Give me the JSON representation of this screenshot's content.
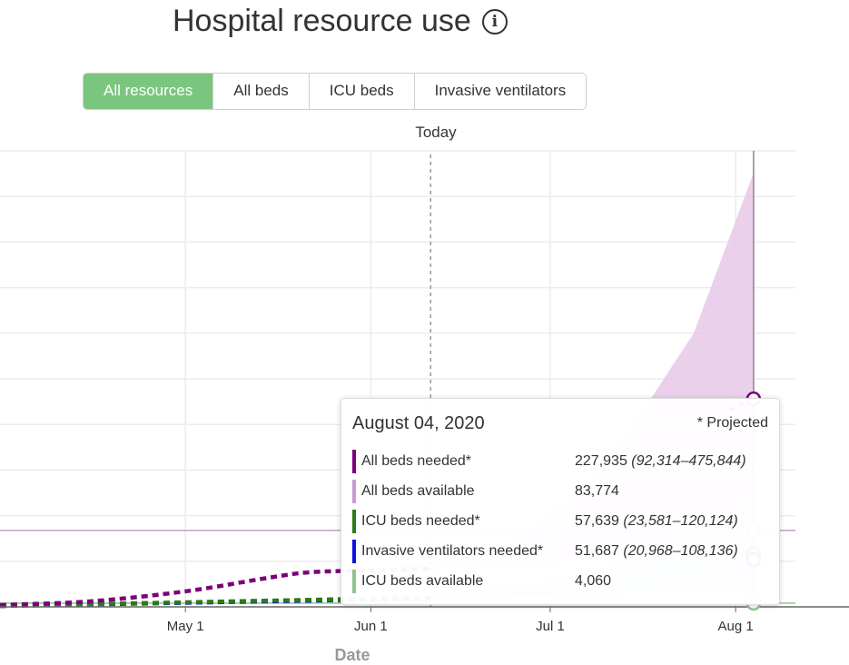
{
  "header": {
    "title": "Hospital resource use",
    "info_icon": "info-icon"
  },
  "tabs": [
    {
      "label": "All resources",
      "active": true
    },
    {
      "label": "All beds",
      "active": false
    },
    {
      "label": "ICU beds",
      "active": false
    },
    {
      "label": "Invasive ventilators",
      "active": false
    }
  ],
  "today_label": "Today",
  "chart_data": {
    "type": "line",
    "xlabel": "Date",
    "x_ticks": [
      "May 1",
      "Jun 1",
      "Jul 1",
      "Aug 1"
    ],
    "x_range": [
      "2020-03-31",
      "2020-08-11"
    ],
    "today": "2020-06-11",
    "hover_date": "2020-08-04",
    "y_range": [
      0,
      500000
    ],
    "grid": true,
    "colors": {
      "all_beds_needed": "#7b007b",
      "all_beds_available": "#c89ad4",
      "icu_beds_needed": "#2a7a1a",
      "ventilators_needed": "#1010e0",
      "icu_beds_available": "#8fc48f",
      "band_all_beds": "#e6c8e6",
      "band_icu": "#cfd2e8"
    },
    "series": [
      {
        "name": "All beds needed",
        "key": "all_beds_needed",
        "x": [
          "2020-03-31",
          "2020-04-15",
          "2020-05-01",
          "2020-05-15",
          "2020-05-22",
          "2020-06-01",
          "2020-06-11",
          "2020-06-25",
          "2020-07-10",
          "2020-07-25",
          "2020-08-04"
        ],
        "values": [
          2000,
          6000,
          17000,
          32000,
          38000,
          40000,
          42000,
          58000,
          90000,
          150000,
          227935
        ],
        "lower": [
          2000,
          6000,
          17000,
          32000,
          38000,
          40000,
          41000,
          45000,
          55000,
          72000,
          92314
        ],
        "upper": [
          2000,
          6000,
          17000,
          32000,
          38000,
          40000,
          43000,
          70000,
          150000,
          300000,
          475844
        ]
      },
      {
        "name": "All beds available",
        "key": "all_beds_available",
        "constant": 83774
      },
      {
        "name": "ICU beds needed",
        "key": "icu_beds_needed",
        "x": [
          "2020-03-31",
          "2020-05-01",
          "2020-06-01",
          "2020-06-11",
          "2020-07-01",
          "2020-07-20",
          "2020-08-04"
        ],
        "values": [
          1000,
          5000,
          9000,
          10000,
          18000,
          32000,
          57639
        ],
        "lower": [
          1000,
          5000,
          9000,
          9500,
          12000,
          17000,
          23581
        ],
        "upper": [
          1000,
          5000,
          9000,
          10500,
          28000,
          60000,
          120124
        ]
      },
      {
        "name": "Invasive ventilators needed",
        "key": "ventilators_needed",
        "x": [
          "2020-03-31",
          "2020-05-01",
          "2020-06-01",
          "2020-06-11",
          "2020-07-01",
          "2020-07-20",
          "2020-08-04"
        ],
        "values": [
          900,
          4500,
          8000,
          9000,
          16000,
          28000,
          51687
        ],
        "lower": [
          900,
          4500,
          8000,
          8500,
          11000,
          15000,
          20968
        ],
        "upper": [
          900,
          4500,
          8000,
          9500,
          25000,
          52000,
          108136
        ]
      },
      {
        "name": "ICU beds available",
        "key": "icu_beds_available",
        "constant": 4060
      }
    ]
  },
  "tooltip": {
    "date": "August 04, 2020",
    "projected_note": "* Projected",
    "rows": [
      {
        "label": "All beds needed*",
        "value": "227,935",
        "range": "(92,314–475,844)",
        "color": "#7b007b"
      },
      {
        "label": "All beds available",
        "value": "83,774",
        "range": "",
        "color": "#c89ad4"
      },
      {
        "label": "ICU beds needed*",
        "value": "57,639",
        "range": "(23,581–120,124)",
        "color": "#2a7a1a"
      },
      {
        "label": "Invasive ventilators needed*",
        "value": "51,687",
        "range": "(20,968–108,136)",
        "color": "#1010e0"
      },
      {
        "label": "ICU beds available",
        "value": "4,060",
        "range": "",
        "color": "#8fc48f"
      }
    ]
  }
}
